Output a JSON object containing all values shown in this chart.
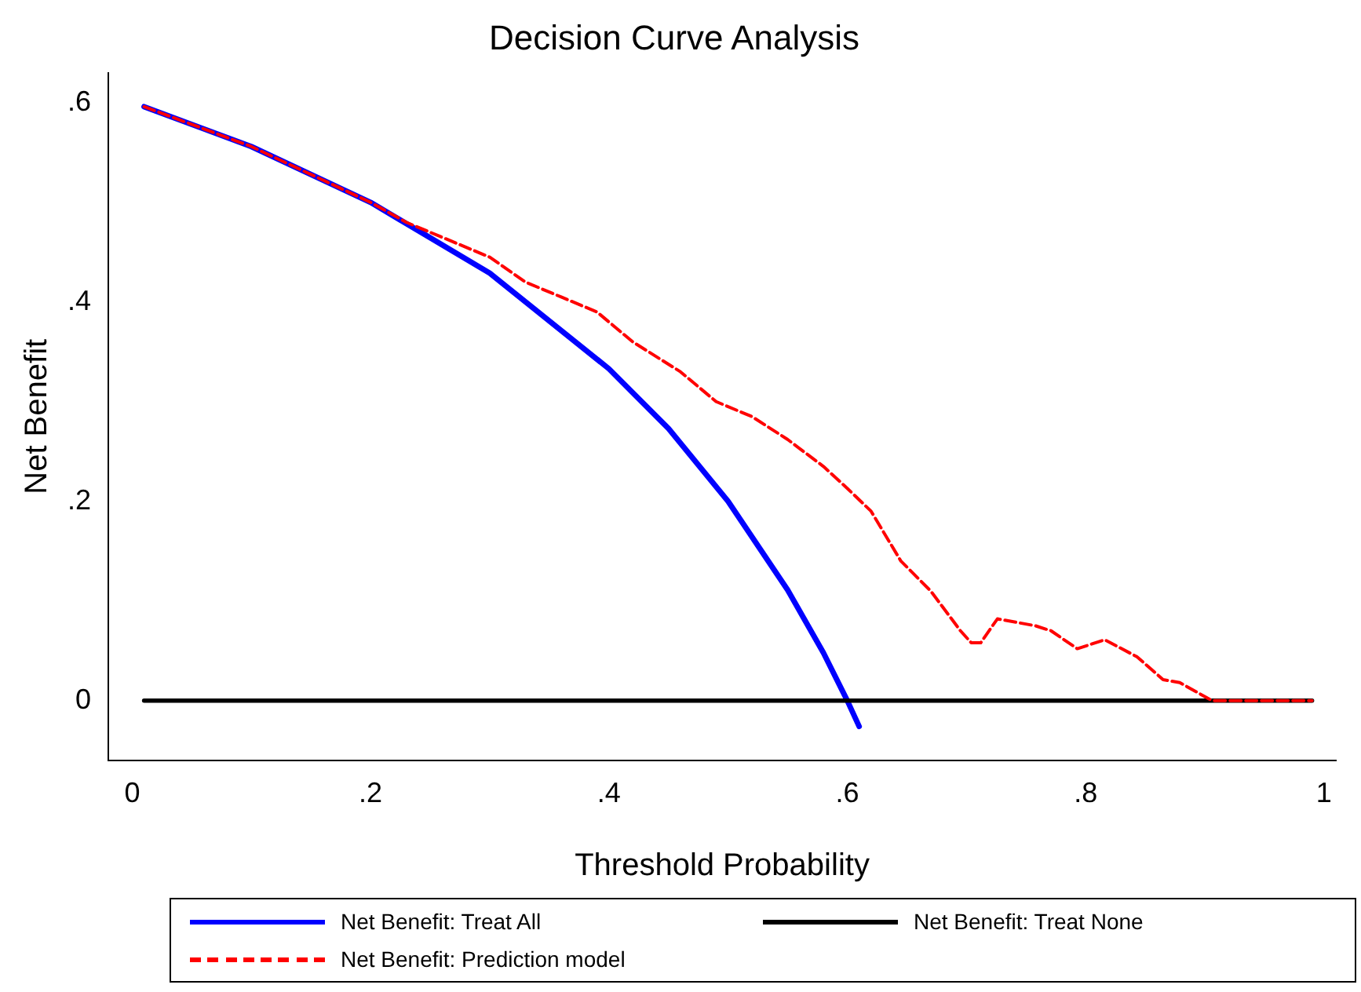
{
  "chart_data": {
    "type": "line",
    "title": "Decision Curve Analysis",
    "xlabel": "Threshold Probability",
    "ylabel": "Net Benefit",
    "xlim": [
      -0.02,
      1.01
    ],
    "ylim": [
      -0.06,
      0.63
    ],
    "xticks": [
      0,
      {
        "value": 0.2,
        "label": ".2"
      },
      {
        "value": 0.4,
        "label": ".4"
      },
      {
        "value": 0.6,
        "label": ".6"
      },
      {
        "value": 0.8,
        "label": ".8"
      },
      1
    ],
    "yticks": [
      0,
      {
        "value": 0.2,
        "label": ".2"
      },
      {
        "value": 0.4,
        "label": ".4"
      },
      {
        "value": 0.6,
        "label": ".6"
      }
    ],
    "grid": false,
    "legend": "bottom",
    "marker": "none",
    "series": [
      {
        "name": "Net Benefit: Treat All",
        "color": "#0000ff",
        "line_style": "solid",
        "x": [
          0.01,
          0.1,
          0.2,
          0.3,
          0.4,
          0.45,
          0.5,
          0.55,
          0.58,
          0.6,
          0.61
        ],
        "values": [
          0.596,
          0.556,
          0.5,
          0.429,
          0.333,
          0.273,
          0.2,
          0.111,
          0.048,
          0,
          -0.026
        ]
      },
      {
        "name": "Net Benefit: Treat None",
        "color": "#000000",
        "line_style": "solid",
        "x": [
          0.01,
          0.99
        ],
        "values": [
          0,
          0
        ]
      },
      {
        "name": "Net Benefit: Prediction model",
        "color": "#ff0000",
        "line_style": "dashed",
        "x": [
          0.01,
          0.1,
          0.2,
          0.23,
          0.26,
          0.3,
          0.33,
          0.36,
          0.39,
          0.42,
          0.46,
          0.49,
          0.52,
          0.55,
          0.58,
          0.6,
          0.62,
          0.645,
          0.67,
          0.695,
          0.704,
          0.712,
          0.726,
          0.758,
          0.771,
          0.793,
          0.816,
          0.843,
          0.865,
          0.879,
          0.906,
          0.99
        ],
        "values": [
          0.596,
          0.556,
          0.5,
          0.48,
          0.465,
          0.445,
          0.42,
          0.405,
          0.39,
          0.36,
          0.33,
          0.3,
          0.285,
          0.262,
          0.235,
          0.213,
          0.19,
          0.14,
          0.11,
          0.07,
          0.058,
          0.058,
          0.082,
          0.075,
          0.07,
          0.052,
          0.061,
          0.044,
          0.021,
          0.018,
          0,
          0
        ]
      }
    ]
  }
}
